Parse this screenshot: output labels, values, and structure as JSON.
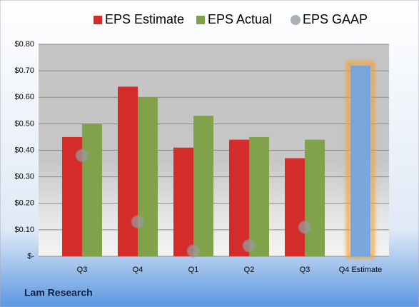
{
  "chart_data": {
    "type": "bar",
    "title": "Lam Research",
    "categories": [
      "Q3",
      "Q4",
      "Q1",
      "Q2",
      "Q3",
      "Q4 Estimate"
    ],
    "series": [
      {
        "name": "EPS Estimate",
        "color": "#d42b2b",
        "colors": [
          "#d42b2b",
          "#d42b2b",
          "#d42b2b",
          "#d42b2b",
          "#d42b2b",
          "#7aa6dc"
        ],
        "values": [
          0.45,
          0.64,
          0.41,
          0.44,
          0.37,
          0.72
        ]
      },
      {
        "name": "EPS Actual",
        "color": "#7fa24a",
        "values": [
          0.5,
          0.6,
          0.53,
          0.45,
          0.44,
          null
        ]
      },
      {
        "name": "EPS GAAP",
        "color": "#a8b0b8",
        "marker": "circle",
        "values": [
          0.38,
          0.13,
          0.02,
          0.04,
          0.11,
          null
        ]
      }
    ],
    "ylim": [
      0,
      0.8
    ],
    "yticks": [
      {
        "value": 0,
        "label": "$-"
      },
      {
        "value": 0.1,
        "label": "$0.10"
      },
      {
        "value": 0.2,
        "label": "$0.20"
      },
      {
        "value": 0.3,
        "label": "$0.30"
      },
      {
        "value": 0.4,
        "label": "$0.40"
      },
      {
        "value": 0.5,
        "label": "$0.50"
      },
      {
        "value": 0.6,
        "label": "$0.60"
      },
      {
        "value": 0.7,
        "label": "$0.70"
      },
      {
        "value": 0.8,
        "label": "$0.80"
      }
    ],
    "grid": true
  }
}
